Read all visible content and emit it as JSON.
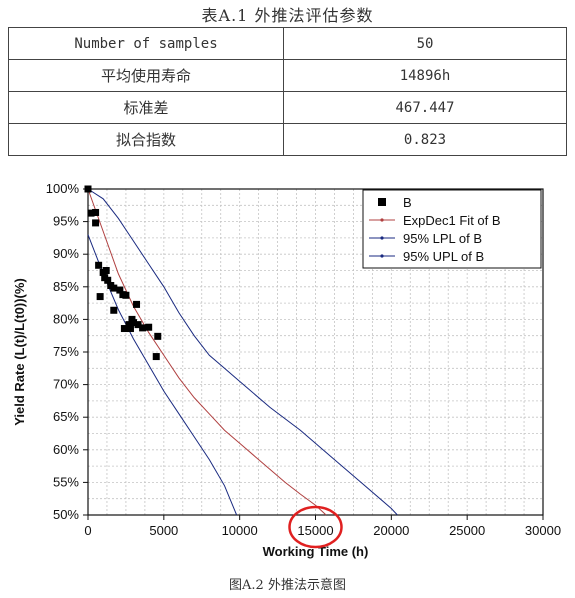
{
  "table": {
    "title": "表A.1 外推法评估参数",
    "rows": [
      {
        "label": "Number of samples",
        "value": "50"
      },
      {
        "label": "平均使用寿命",
        "value": "14896h"
      },
      {
        "label": "标准差",
        "value": "467.447"
      },
      {
        "label": "拟合指数",
        "value": "0.823"
      }
    ]
  },
  "figure_caption": "图A.2 外推法示意图",
  "chart_data": {
    "type": "scatter",
    "xlabel": "Working Time (h)",
    "ylabel": "Yield Rate (L(t)/L(t0))(%)",
    "xlim": [
      0,
      30000
    ],
    "ylim": [
      50,
      100
    ],
    "xticks": [
      0,
      5000,
      10000,
      15000,
      20000,
      25000,
      30000
    ],
    "yticks": [
      50,
      55,
      60,
      65,
      70,
      75,
      80,
      85,
      90,
      95,
      100
    ],
    "grid": true,
    "legend_position": "top-right",
    "highlight": {
      "x_value": 15000,
      "shape": "ellipse",
      "color": "#e02020"
    },
    "series": [
      {
        "name": "B",
        "kind": "markers",
        "color": "#000000",
        "points": [
          [
            0,
            100
          ],
          [
            200,
            96.3
          ],
          [
            500,
            96.4
          ],
          [
            500,
            94.8
          ],
          [
            700,
            88.3
          ],
          [
            800,
            83.5
          ],
          [
            1000,
            87.2
          ],
          [
            1100,
            86.4
          ],
          [
            1200,
            87.5
          ],
          [
            1300,
            86.0
          ],
          [
            1500,
            85.2
          ],
          [
            1700,
            84.8
          ],
          [
            1700,
            81.4
          ],
          [
            2100,
            84.5
          ],
          [
            2300,
            83.8
          ],
          [
            2400,
            78.6
          ],
          [
            2500,
            83.7
          ],
          [
            2700,
            79.2
          ],
          [
            2800,
            78.6
          ],
          [
            2900,
            80.0
          ],
          [
            3000,
            79.5
          ],
          [
            3200,
            82.3
          ],
          [
            3300,
            79.2
          ],
          [
            3600,
            78.7
          ],
          [
            4000,
            78.8
          ],
          [
            4500,
            74.3
          ],
          [
            4600,
            77.4
          ]
        ]
      },
      {
        "name": "ExpDec1 Fit of B",
        "kind": "line",
        "color": "#b04040",
        "points": [
          [
            0,
            100
          ],
          [
            1000,
            93.5
          ],
          [
            2000,
            87.0
          ],
          [
            3000,
            82.0
          ],
          [
            4000,
            78.0
          ],
          [
            5000,
            74.5
          ],
          [
            6000,
            71.0
          ],
          [
            7000,
            68.0
          ],
          [
            8000,
            65.5
          ],
          [
            9000,
            63.0
          ],
          [
            10000,
            61.0
          ],
          [
            11000,
            59.0
          ],
          [
            12000,
            57.0
          ],
          [
            13000,
            55.0
          ],
          [
            14000,
            53.2
          ],
          [
            15000,
            51.5
          ],
          [
            15700,
            50.0
          ]
        ]
      },
      {
        "name": "95% LPL of B",
        "kind": "line",
        "color": "#1a2a80",
        "points": [
          [
            0,
            93
          ],
          [
            1000,
            87.0
          ],
          [
            2000,
            81.5
          ],
          [
            3000,
            77.0
          ],
          [
            4000,
            73.0
          ],
          [
            5000,
            69.0
          ],
          [
            6000,
            65.5
          ],
          [
            7000,
            62.0
          ],
          [
            8000,
            58.5
          ],
          [
            9000,
            54.5
          ],
          [
            9800,
            50.0
          ]
        ]
      },
      {
        "name": "95% UPL of B",
        "kind": "line",
        "color": "#1a2a80",
        "points": [
          [
            0,
            100
          ],
          [
            1000,
            98.5
          ],
          [
            2000,
            95.5
          ],
          [
            3000,
            92.0
          ],
          [
            4000,
            88.5
          ],
          [
            5000,
            85.0
          ],
          [
            6000,
            81.0
          ],
          [
            7000,
            77.5
          ],
          [
            8000,
            74.5
          ],
          [
            9000,
            72.5
          ],
          [
            10000,
            70.5
          ],
          [
            12000,
            66.5
          ],
          [
            14000,
            63.0
          ],
          [
            16000,
            59.0
          ],
          [
            18000,
            55.0
          ],
          [
            20000,
            51.0
          ],
          [
            20400,
            50.0
          ]
        ]
      }
    ]
  }
}
